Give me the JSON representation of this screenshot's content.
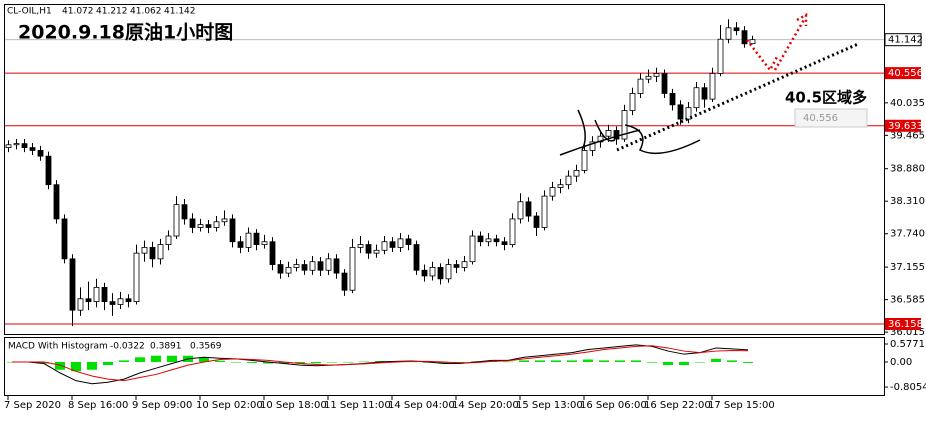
{
  "chart_data": [
    {
      "type": "candlestick",
      "title": "2020.9.18原油1小时图",
      "symbol": "CL-OIL,H1",
      "header_ohlc": [
        41.072,
        41.212,
        41.062,
        41.142
      ],
      "annotation": "40.5区域多",
      "tooltip": 40.556,
      "last_price": 41.142,
      "bull_color": "#ffffff",
      "bear_color": "#000000",
      "hlines": {
        "values": [
          40.556,
          39.633,
          36.158
        ],
        "color": "#e00000"
      },
      "ylim": [
        36.0,
        41.75
      ],
      "yticks": [
        40.035,
        39.465,
        {
          "value": 38.88,
          "label": "38.880"
        },
        {
          "value": 38.31,
          "label": "38.310"
        },
        {
          "value": 37.74,
          "label": "37.740"
        },
        37.155,
        36.585,
        36.015
      ],
      "xticks": [
        {
          "value": 0,
          "label": "7 Sep 2020"
        },
        {
          "value": 8,
          "label": "8 Sep 16:00"
        },
        {
          "value": 16,
          "label": "9 Sep 09:00"
        },
        {
          "value": 24,
          "label": "10 Sep 02:00"
        },
        {
          "value": 32,
          "label": "10 Sep 18:00"
        },
        {
          "value": 40,
          "label": "11 Sep 11:00"
        },
        {
          "value": 48,
          "label": "14 Sep 04:00"
        },
        {
          "value": 56,
          "label": "14 Sep 20:00"
        },
        {
          "value": 64,
          "label": "15 Sep 13:00"
        },
        {
          "value": 72,
          "label": "16 Sep 06:00"
        },
        {
          "value": 80,
          "label": "16 Sep 22:00"
        },
        {
          "value": 88,
          "label": "17 Sep 15:00"
        }
      ],
      "candles": [
        [
          39.25,
          39.38,
          39.17,
          39.3
        ],
        [
          39.3,
          39.4,
          39.22,
          39.32
        ],
        [
          39.32,
          39.4,
          39.17,
          39.25
        ],
        [
          39.25,
          39.33,
          39.12,
          39.2
        ],
        [
          39.2,
          39.28,
          39.02,
          39.1
        ],
        [
          39.1,
          39.18,
          38.52,
          38.6
        ],
        [
          38.6,
          38.68,
          37.92,
          38.0
        ],
        [
          38.0,
          38.08,
          37.22,
          37.3
        ],
        [
          37.3,
          37.38,
          36.12,
          36.4
        ],
        [
          36.4,
          36.8,
          36.3,
          36.6
        ],
        [
          36.6,
          36.9,
          36.4,
          36.55
        ],
        [
          36.55,
          36.95,
          36.45,
          36.8
        ],
        [
          36.8,
          36.88,
          36.4,
          36.55
        ],
        [
          36.55,
          36.7,
          36.3,
          36.5
        ],
        [
          36.5,
          36.72,
          36.42,
          36.6
        ],
        [
          36.6,
          36.68,
          36.45,
          36.55
        ],
        [
          36.55,
          37.55,
          36.5,
          37.4
        ],
        [
          37.4,
          37.62,
          37.25,
          37.5
        ],
        [
          37.5,
          37.6,
          37.15,
          37.3
        ],
        [
          37.3,
          37.65,
          37.2,
          37.55
        ],
        [
          37.55,
          37.8,
          37.45,
          37.7
        ],
        [
          37.7,
          38.4,
          37.65,
          38.25
        ],
        [
          38.25,
          38.35,
          37.9,
          38.0
        ],
        [
          38.0,
          38.1,
          37.75,
          37.85
        ],
        [
          37.85,
          38.0,
          37.78,
          37.9
        ],
        [
          37.9,
          37.98,
          37.75,
          37.85
        ],
        [
          37.85,
          38.05,
          37.78,
          37.95
        ],
        [
          37.95,
          38.15,
          37.88,
          38.0
        ],
        [
          38.0,
          38.08,
          37.5,
          37.6
        ],
        [
          37.6,
          37.7,
          37.4,
          37.5
        ],
        [
          37.5,
          37.85,
          37.42,
          37.75
        ],
        [
          37.75,
          37.82,
          37.45,
          37.55
        ],
        [
          37.55,
          37.72,
          37.48,
          37.6
        ],
        [
          37.6,
          37.68,
          37.1,
          37.2
        ],
        [
          37.2,
          37.28,
          36.95,
          37.05
        ],
        [
          37.05,
          37.25,
          36.98,
          37.15
        ],
        [
          37.15,
          37.3,
          37.08,
          37.2
        ],
        [
          37.2,
          37.28,
          37.02,
          37.1
        ],
        [
          37.1,
          37.35,
          37.02,
          37.25
        ],
        [
          37.25,
          37.33,
          37.0,
          37.1
        ],
        [
          37.1,
          37.4,
          37.02,
          37.3
        ],
        [
          37.3,
          37.38,
          36.95,
          37.05
        ],
        [
          37.05,
          37.12,
          36.65,
          36.75
        ],
        [
          36.75,
          37.65,
          36.7,
          37.5
        ],
        [
          37.5,
          37.7,
          37.4,
          37.55
        ],
        [
          37.55,
          37.62,
          37.3,
          37.4
        ],
        [
          37.4,
          37.55,
          37.32,
          37.45
        ],
        [
          37.45,
          37.7,
          37.38,
          37.6
        ],
        [
          37.6,
          37.68,
          37.42,
          37.5
        ],
        [
          37.5,
          37.75,
          37.42,
          37.65
        ],
        [
          37.65,
          37.72,
          37.45,
          37.55
        ],
        [
          37.55,
          37.62,
          37.02,
          37.1
        ],
        [
          37.1,
          37.2,
          36.9,
          37.0
        ],
        [
          37.0,
          37.25,
          36.92,
          37.15
        ],
        [
          37.15,
          37.22,
          36.85,
          36.95
        ],
        [
          36.95,
          37.3,
          36.88,
          37.2
        ],
        [
          37.2,
          37.28,
          37.05,
          37.15
        ],
        [
          37.15,
          37.35,
          37.08,
          37.25
        ],
        [
          37.25,
          37.8,
          37.2,
          37.7
        ],
        [
          37.7,
          37.78,
          37.52,
          37.6
        ],
        [
          37.6,
          37.75,
          37.52,
          37.65
        ],
        [
          37.65,
          37.72,
          37.52,
          37.6
        ],
        [
          37.6,
          37.68,
          37.45,
          37.55
        ],
        [
          37.55,
          38.1,
          37.5,
          38.0
        ],
        [
          38.0,
          38.45,
          37.92,
          38.3
        ],
        [
          38.3,
          38.38,
          37.95,
          38.05
        ],
        [
          38.05,
          38.12,
          37.7,
          37.85
        ],
        [
          37.85,
          38.5,
          37.8,
          38.4
        ],
        [
          38.4,
          38.65,
          38.32,
          38.55
        ],
        [
          38.55,
          38.7,
          38.45,
          38.6
        ],
        [
          38.6,
          38.85,
          38.52,
          38.75
        ],
        [
          38.75,
          38.95,
          38.65,
          38.85
        ],
        [
          38.85,
          39.3,
          38.8,
          39.2
        ],
        [
          39.2,
          39.45,
          39.1,
          39.35
        ],
        [
          39.35,
          39.55,
          39.25,
          39.45
        ],
        [
          39.45,
          39.65,
          39.35,
          39.55
        ],
        [
          39.55,
          39.62,
          39.3,
          39.4
        ],
        [
          39.4,
          40.0,
          39.35,
          39.9
        ],
        [
          39.9,
          40.3,
          39.82,
          40.2
        ],
        [
          40.2,
          40.55,
          40.12,
          40.45
        ],
        [
          40.45,
          40.62,
          40.38,
          40.5
        ],
        [
          40.5,
          40.65,
          40.4,
          40.55
        ],
        [
          40.55,
          40.62,
          40.12,
          40.2
        ],
        [
          40.2,
          40.28,
          39.9,
          40.0
        ],
        [
          40.0,
          40.08,
          39.65,
          39.75
        ],
        [
          39.75,
          40.05,
          39.68,
          39.95
        ],
        [
          39.95,
          40.4,
          39.88,
          40.3
        ],
        [
          40.3,
          40.38,
          39.95,
          40.1
        ],
        [
          40.1,
          40.65,
          40.05,
          40.55
        ],
        [
          40.55,
          41.4,
          40.5,
          41.15
        ],
        [
          41.15,
          41.5,
          41.08,
          41.35
        ],
        [
          41.35,
          41.45,
          41.22,
          41.3
        ],
        [
          41.3,
          41.38,
          41.0,
          41.07
        ],
        [
          41.072,
          41.212,
          41.062,
          41.142
        ]
      ]
    },
    {
      "type": "macd",
      "name": "MACD With Histogram",
      "header_values": [
        -0.0322,
        0.3891,
        0.3569
      ],
      "ylim": [
        -1.06,
        0.705
      ],
      "yticks": [
        0.5771,
        {
          "value": 0,
          "label": "0.00"
        },
        -0.8054
      ],
      "histogram": {
        "color": "#00e000",
        "values": [
          0.0,
          0.0,
          -0.05,
          -0.25,
          -0.3,
          -0.25,
          -0.1,
          0.05,
          0.15,
          0.2,
          0.2,
          0.2,
          0.15,
          0.04,
          0.0,
          -0.03,
          -0.05,
          -0.05,
          -0.05,
          -0.04,
          0.0,
          0.0,
          0.01,
          0.03,
          0.02,
          0.01,
          -0.02,
          -0.05,
          -0.02,
          0.02,
          0.03,
          0.01,
          0.05,
          0.05,
          0.05,
          0.05,
          0.08,
          0.05,
          0.05,
          0.05,
          -0.02,
          -0.1,
          -0.1,
          0.0,
          0.1,
          0.05,
          -0.03
        ]
      },
      "series": [
        {
          "color": "#000000",
          "values": [
            0.0,
            0.0,
            -0.05,
            -0.35,
            -0.6,
            -0.7,
            -0.65,
            -0.55,
            -0.35,
            -0.2,
            -0.05,
            0.1,
            0.15,
            0.12,
            0.1,
            0.05,
            0.0,
            -0.05,
            -0.1,
            -0.12,
            -0.1,
            -0.08,
            -0.05,
            0.0,
            0.02,
            0.03,
            0.0,
            -0.05,
            -0.05,
            0.0,
            0.05,
            0.05,
            0.15,
            0.2,
            0.25,
            0.3,
            0.4,
            0.45,
            0.5,
            0.55,
            0.5,
            0.35,
            0.25,
            0.3,
            0.45,
            0.42,
            0.39
          ]
        },
        {
          "color": "#e00000",
          "values": [
            0.0,
            0.0,
            0.0,
            -0.1,
            -0.3,
            -0.45,
            -0.55,
            -0.6,
            -0.5,
            -0.4,
            -0.25,
            -0.1,
            0.0,
            0.08,
            0.1,
            0.08,
            0.05,
            0.0,
            -0.05,
            -0.08,
            -0.1,
            -0.08,
            -0.06,
            -0.03,
            0.0,
            0.02,
            0.02,
            0.0,
            -0.03,
            -0.02,
            0.02,
            0.04,
            0.1,
            0.15,
            0.2,
            0.25,
            0.32,
            0.4,
            0.45,
            0.5,
            0.52,
            0.45,
            0.35,
            0.3,
            0.35,
            0.37,
            0.36
          ]
        }
      ]
    }
  ]
}
